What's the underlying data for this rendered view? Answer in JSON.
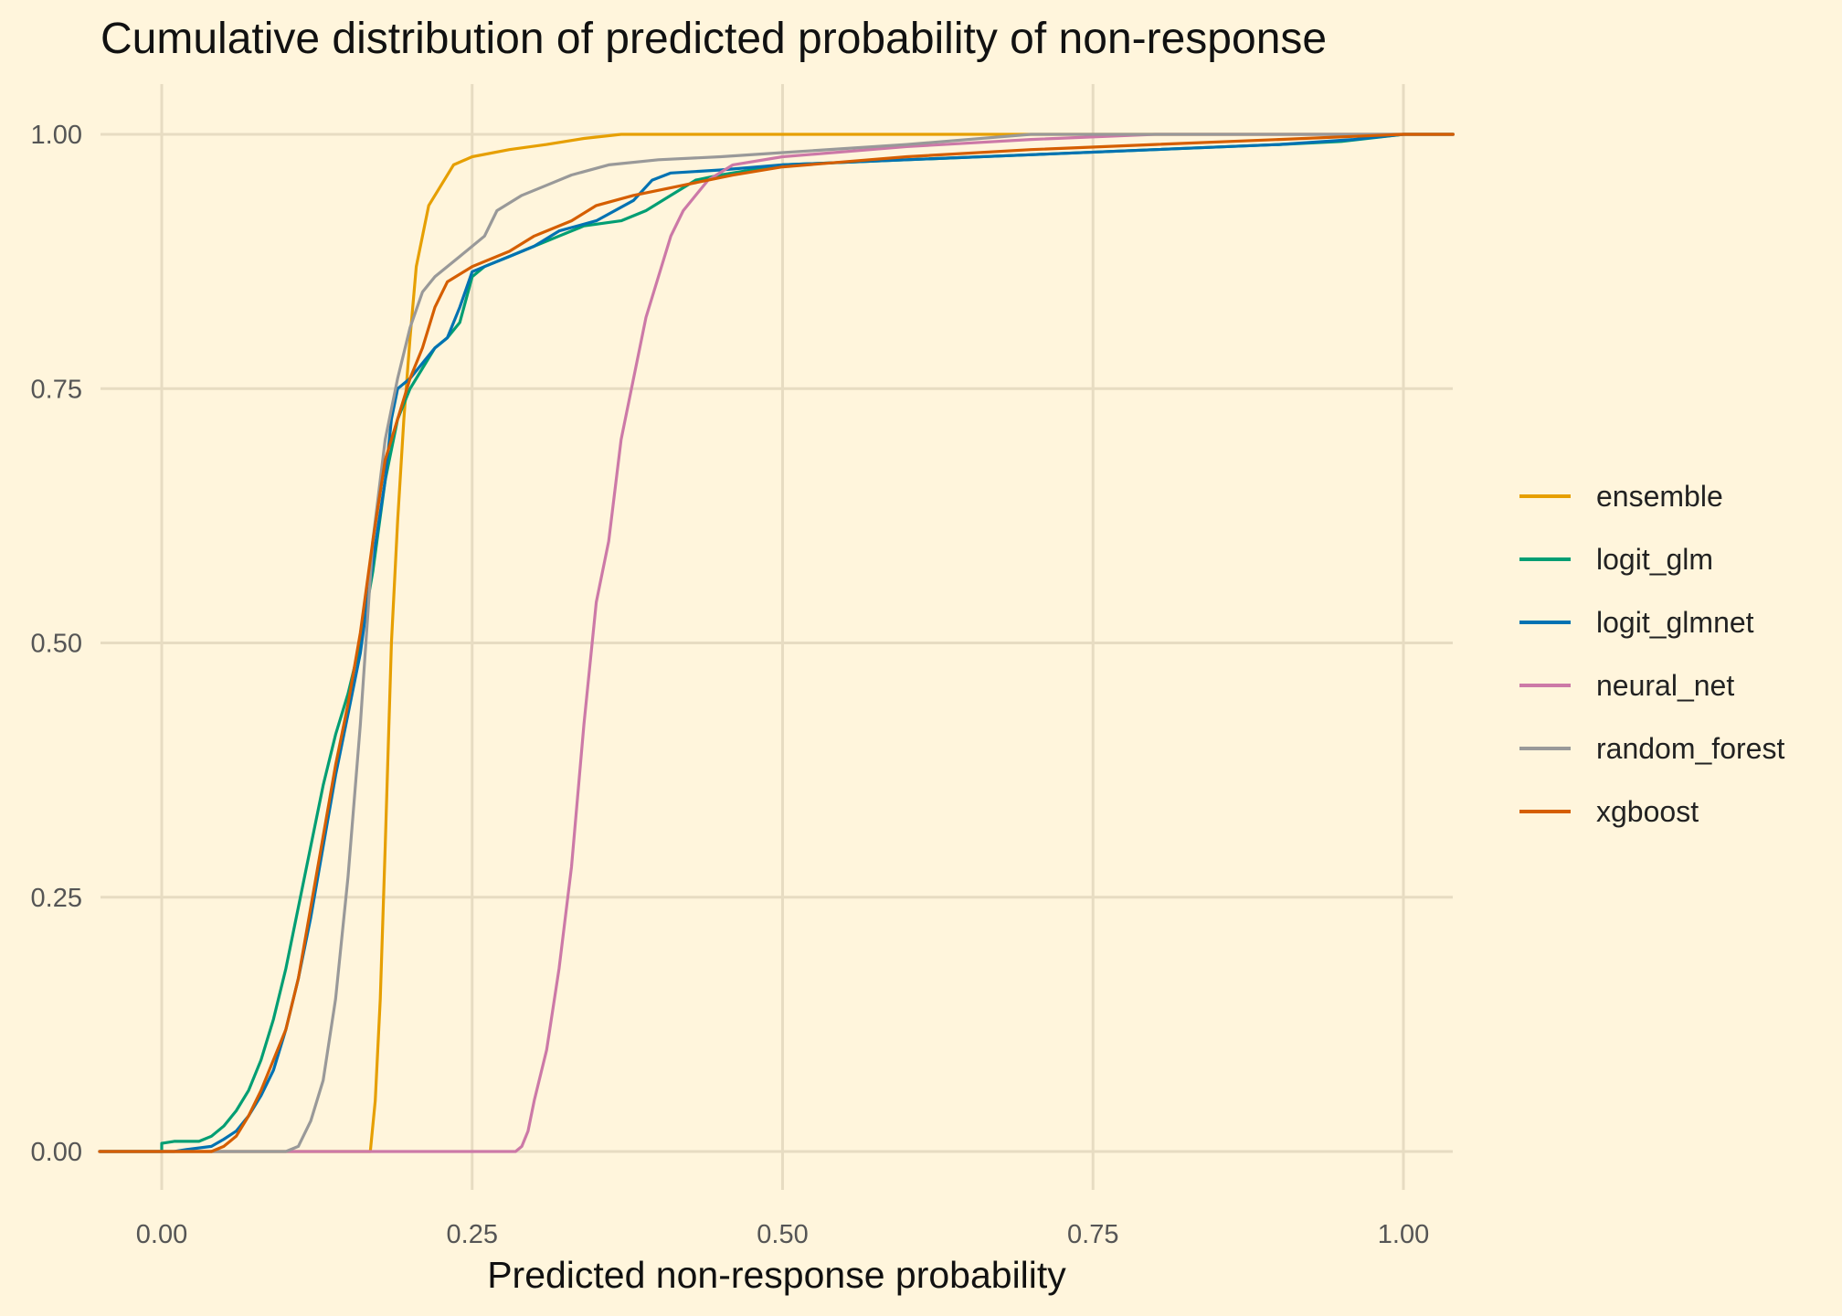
{
  "chart_data": {
    "type": "line",
    "title": "Cumulative distribution of predicted probability of non-response",
    "xlabel": "Predicted non-response probability",
    "ylabel": "",
    "xlim": [
      -0.05,
      1.04
    ],
    "ylim": [
      0,
      1
    ],
    "x_ticks": [
      "0.00",
      "0.25",
      "0.50",
      "0.75",
      "1.00"
    ],
    "y_ticks": [
      "0.00",
      "0.25",
      "0.50",
      "0.75",
      "1.00"
    ],
    "grid": true,
    "legend_position": "right",
    "background": "#fff5dc",
    "series": [
      {
        "name": "ensemble",
        "color": "#e69f00",
        "points": [
          [
            -0.05,
            0
          ],
          [
            0.168,
            0
          ],
          [
            0.172,
            0.05
          ],
          [
            0.176,
            0.15
          ],
          [
            0.18,
            0.3
          ],
          [
            0.185,
            0.5
          ],
          [
            0.19,
            0.62
          ],
          [
            0.195,
            0.72
          ],
          [
            0.2,
            0.8
          ],
          [
            0.205,
            0.87
          ],
          [
            0.21,
            0.9
          ],
          [
            0.215,
            0.93
          ],
          [
            0.225,
            0.95
          ],
          [
            0.235,
            0.97
          ],
          [
            0.25,
            0.978
          ],
          [
            0.28,
            0.985
          ],
          [
            0.31,
            0.99
          ],
          [
            0.34,
            0.996
          ],
          [
            0.37,
            1.0
          ],
          [
            1.04,
            1.0
          ]
        ]
      },
      {
        "name": "logit_glm",
        "color": "#009e73",
        "points": [
          [
            -0.05,
            0
          ],
          [
            0,
            0
          ],
          [
            0,
            0.008
          ],
          [
            0.01,
            0.01
          ],
          [
            0.03,
            0.01
          ],
          [
            0.04,
            0.015
          ],
          [
            0.05,
            0.025
          ],
          [
            0.06,
            0.04
          ],
          [
            0.07,
            0.06
          ],
          [
            0.08,
            0.09
          ],
          [
            0.09,
            0.13
          ],
          [
            0.1,
            0.18
          ],
          [
            0.11,
            0.24
          ],
          [
            0.12,
            0.3
          ],
          [
            0.13,
            0.36
          ],
          [
            0.14,
            0.41
          ],
          [
            0.15,
            0.45
          ],
          [
            0.16,
            0.5
          ],
          [
            0.17,
            0.57
          ],
          [
            0.18,
            0.66
          ],
          [
            0.19,
            0.72
          ],
          [
            0.2,
            0.75
          ],
          [
            0.21,
            0.77
          ],
          [
            0.22,
            0.79
          ],
          [
            0.23,
            0.8
          ],
          [
            0.24,
            0.815
          ],
          [
            0.25,
            0.86
          ],
          [
            0.26,
            0.87
          ],
          [
            0.28,
            0.88
          ],
          [
            0.3,
            0.89
          ],
          [
            0.32,
            0.9
          ],
          [
            0.34,
            0.91
          ],
          [
            0.37,
            0.915
          ],
          [
            0.39,
            0.925
          ],
          [
            0.41,
            0.94
          ],
          [
            0.43,
            0.955
          ],
          [
            0.45,
            0.96
          ],
          [
            0.5,
            0.97
          ],
          [
            0.6,
            0.975
          ],
          [
            0.7,
            0.98
          ],
          [
            0.8,
            0.985
          ],
          [
            0.9,
            0.99
          ],
          [
            0.95,
            0.993
          ],
          [
            1.0,
            1.0
          ],
          [
            1.04,
            1.0
          ]
        ]
      },
      {
        "name": "logit_glmnet",
        "color": "#0072b2",
        "points": [
          [
            -0.05,
            0
          ],
          [
            0.01,
            0
          ],
          [
            0.02,
            0.002
          ],
          [
            0.04,
            0.005
          ],
          [
            0.05,
            0.012
          ],
          [
            0.06,
            0.02
          ],
          [
            0.07,
            0.035
          ],
          [
            0.08,
            0.055
          ],
          [
            0.09,
            0.08
          ],
          [
            0.1,
            0.12
          ],
          [
            0.11,
            0.17
          ],
          [
            0.12,
            0.23
          ],
          [
            0.13,
            0.3
          ],
          [
            0.14,
            0.37
          ],
          [
            0.15,
            0.43
          ],
          [
            0.16,
            0.49
          ],
          [
            0.17,
            0.58
          ],
          [
            0.18,
            0.66
          ],
          [
            0.185,
            0.72
          ],
          [
            0.19,
            0.75
          ],
          [
            0.2,
            0.76
          ],
          [
            0.21,
            0.775
          ],
          [
            0.22,
            0.79
          ],
          [
            0.23,
            0.8
          ],
          [
            0.24,
            0.83
          ],
          [
            0.25,
            0.865
          ],
          [
            0.26,
            0.87
          ],
          [
            0.28,
            0.88
          ],
          [
            0.3,
            0.89
          ],
          [
            0.32,
            0.905
          ],
          [
            0.35,
            0.915
          ],
          [
            0.38,
            0.935
          ],
          [
            0.395,
            0.955
          ],
          [
            0.41,
            0.962
          ],
          [
            0.45,
            0.965
          ],
          [
            0.5,
            0.97
          ],
          [
            0.6,
            0.975
          ],
          [
            0.7,
            0.98
          ],
          [
            0.8,
            0.985
          ],
          [
            0.9,
            0.99
          ],
          [
            0.96,
            0.995
          ],
          [
            1.0,
            1.0
          ],
          [
            1.04,
            1.0
          ]
        ]
      },
      {
        "name": "neural_net",
        "color": "#cc79a7",
        "points": [
          [
            -0.05,
            0
          ],
          [
            0.285,
            0
          ],
          [
            0.29,
            0.005
          ],
          [
            0.295,
            0.02
          ],
          [
            0.3,
            0.05
          ],
          [
            0.31,
            0.1
          ],
          [
            0.32,
            0.18
          ],
          [
            0.33,
            0.28
          ],
          [
            0.34,
            0.42
          ],
          [
            0.35,
            0.54
          ],
          [
            0.36,
            0.6
          ],
          [
            0.37,
            0.7
          ],
          [
            0.38,
            0.76
          ],
          [
            0.39,
            0.82
          ],
          [
            0.4,
            0.86
          ],
          [
            0.41,
            0.9
          ],
          [
            0.42,
            0.925
          ],
          [
            0.43,
            0.94
          ],
          [
            0.44,
            0.955
          ],
          [
            0.46,
            0.97
          ],
          [
            0.5,
            0.978
          ],
          [
            0.6,
            0.988
          ],
          [
            0.7,
            0.995
          ],
          [
            0.8,
            1.0
          ],
          [
            1.04,
            1.0
          ]
        ]
      },
      {
        "name": "random_forest",
        "color": "#999999",
        "points": [
          [
            -0.05,
            0
          ],
          [
            0.1,
            0
          ],
          [
            0.11,
            0.005
          ],
          [
            0.12,
            0.03
          ],
          [
            0.13,
            0.07
          ],
          [
            0.14,
            0.15
          ],
          [
            0.15,
            0.27
          ],
          [
            0.16,
            0.42
          ],
          [
            0.17,
            0.6
          ],
          [
            0.18,
            0.7
          ],
          [
            0.19,
            0.76
          ],
          [
            0.2,
            0.81
          ],
          [
            0.21,
            0.845
          ],
          [
            0.22,
            0.86
          ],
          [
            0.24,
            0.88
          ],
          [
            0.26,
            0.9
          ],
          [
            0.27,
            0.925
          ],
          [
            0.29,
            0.94
          ],
          [
            0.31,
            0.95
          ],
          [
            0.33,
            0.96
          ],
          [
            0.36,
            0.97
          ],
          [
            0.4,
            0.975
          ],
          [
            0.45,
            0.978
          ],
          [
            0.5,
            0.982
          ],
          [
            0.6,
            0.99
          ],
          [
            0.7,
            1.0
          ],
          [
            1.04,
            1.0
          ]
        ]
      },
      {
        "name": "xgboost",
        "color": "#d55e00",
        "points": [
          [
            -0.05,
            0
          ],
          [
            0.04,
            0
          ],
          [
            0.05,
            0.005
          ],
          [
            0.06,
            0.015
          ],
          [
            0.07,
            0.035
          ],
          [
            0.08,
            0.06
          ],
          [
            0.09,
            0.09
          ],
          [
            0.1,
            0.12
          ],
          [
            0.11,
            0.17
          ],
          [
            0.12,
            0.24
          ],
          [
            0.13,
            0.31
          ],
          [
            0.14,
            0.38
          ],
          [
            0.15,
            0.44
          ],
          [
            0.16,
            0.51
          ],
          [
            0.17,
            0.6
          ],
          [
            0.18,
            0.68
          ],
          [
            0.19,
            0.72
          ],
          [
            0.2,
            0.76
          ],
          [
            0.21,
            0.79
          ],
          [
            0.22,
            0.83
          ],
          [
            0.23,
            0.855
          ],
          [
            0.25,
            0.87
          ],
          [
            0.28,
            0.885
          ],
          [
            0.3,
            0.9
          ],
          [
            0.33,
            0.915
          ],
          [
            0.35,
            0.93
          ],
          [
            0.38,
            0.94
          ],
          [
            0.42,
            0.95
          ],
          [
            0.46,
            0.96
          ],
          [
            0.5,
            0.968
          ],
          [
            0.6,
            0.978
          ],
          [
            0.7,
            0.985
          ],
          [
            0.8,
            0.99
          ],
          [
            0.9,
            0.995
          ],
          [
            1.0,
            1.0
          ],
          [
            1.04,
            1.0
          ]
        ]
      }
    ]
  }
}
